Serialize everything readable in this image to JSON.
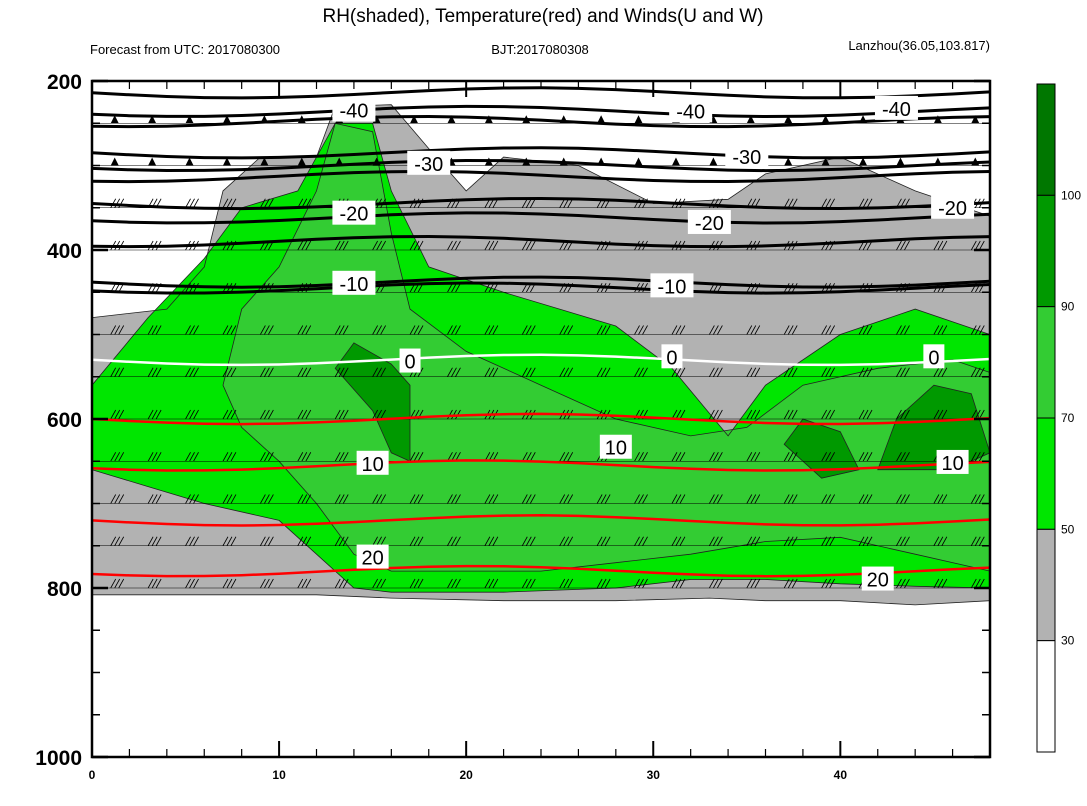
{
  "chart_data": {
    "type": "heatmap",
    "title": "RH(shaded), Temperature(red) and Winds(U and W)",
    "subtitle_left": "Forecast from UTC: 2017080300",
    "subtitle_center": "BJT:2017080308",
    "subtitle_right": "Lanzhou(36.05,103.817)",
    "x_ticks": [
      0,
      10,
      20,
      30,
      40
    ],
    "y_ticks": [
      200,
      400,
      600,
      800,
      1000
    ],
    "xlim": [
      0,
      48
    ],
    "ylim": [
      1000,
      200
    ],
    "colorbar": {
      "levels": [
        30,
        50,
        70,
        90,
        100
      ],
      "colors": [
        "#ffffff",
        "#b2b2b2",
        "#00e600",
        "#33cc33",
        "#009900",
        "#007700"
      ]
    },
    "temperature_contours": [
      {
        "level": -40,
        "color": "#000000",
        "labels": [
          {
            "x": 14,
            "p": 235
          },
          {
            "x": 32,
            "p": 236
          },
          {
            "x": 43,
            "p": 233
          }
        ]
      },
      {
        "level": -30,
        "color": "#000000",
        "labels": [
          {
            "x": 18,
            "p": 298
          },
          {
            "x": 35,
            "p": 290
          }
        ]
      },
      {
        "level": -20,
        "color": "#000000",
        "labels": [
          {
            "x": 14,
            "p": 357
          },
          {
            "x": 33,
            "p": 368
          },
          {
            "x": 46,
            "p": 350
          }
        ]
      },
      {
        "level": -10,
        "color": "#000000",
        "labels": [
          {
            "x": 14,
            "p": 440
          },
          {
            "x": 31,
            "p": 443
          }
        ]
      },
      {
        "level": 0,
        "color": "#ffffff",
        "labels": [
          {
            "x": 17,
            "p": 532
          },
          {
            "x": 31,
            "p": 527
          },
          {
            "x": 45,
            "p": 527
          }
        ]
      },
      {
        "level": 10,
        "color": "#ff0000",
        "labels": [
          {
            "x": 15,
            "p": 653
          },
          {
            "x": 28,
            "p": 634
          },
          {
            "x": 46,
            "p": 652
          }
        ]
      },
      {
        "level": 20,
        "color": "#ff0000",
        "labels": [
          {
            "x": 15,
            "p": 764
          },
          {
            "x": 42,
            "p": 790
          }
        ]
      }
    ],
    "wind_barb_levels": [
      250,
      300,
      350,
      400,
      450,
      500,
      550,
      600,
      650,
      700,
      750,
      800
    ]
  }
}
